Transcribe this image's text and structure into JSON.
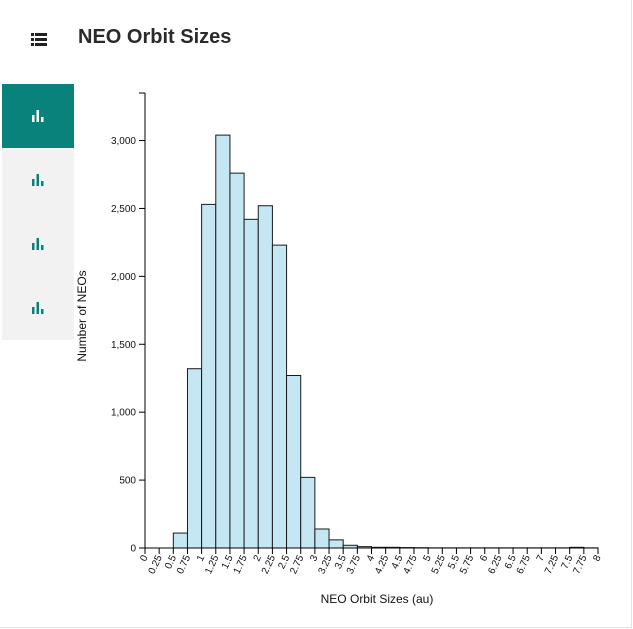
{
  "page": {
    "title": "NEO Orbit Sizes"
  },
  "icons": {
    "menu": "list-icon",
    "nav": "bar-chart-icon"
  },
  "colors": {
    "accent": "#0a827c",
    "bar_fill": "#c5e7f4",
    "sidebar_bg": "#f2f2f2"
  },
  "sidebar": {
    "items": [
      {
        "name": "chart-view-1",
        "active": true
      },
      {
        "name": "chart-view-2",
        "active": false
      },
      {
        "name": "chart-view-3",
        "active": false
      },
      {
        "name": "chart-view-4",
        "active": false
      }
    ]
  },
  "chart_data": {
    "type": "bar",
    "title": "",
    "xlabel": "NEO Orbit Sizes (au)",
    "ylabel": "Number of NEOs",
    "bin_width": 0.25,
    "xlim": [
      0,
      8
    ],
    "ylim": [
      0,
      3350
    ],
    "y_ticks": [
      0,
      500,
      1000,
      1500,
      2000,
      2500,
      3000
    ],
    "y_tick_labels": [
      "0",
      "500",
      "1,000",
      "1,500",
      "2,000",
      "2,500",
      "3,000"
    ],
    "x_tick_labels": [
      "0",
      "0.25",
      "0.5",
      "0.75",
      "1",
      "1.25",
      "1.5",
      "1.75",
      "2",
      "2.25",
      "2.5",
      "2.75",
      "3",
      "3.25",
      "3.5",
      "3.75",
      "4",
      "4.25",
      "4.5",
      "4.75",
      "5",
      "5.25",
      "5.5",
      "5.75",
      "6",
      "6.25",
      "6.5",
      "6.75",
      "7",
      "7.25",
      "7.5",
      "7.75",
      "8"
    ],
    "bins_start": [
      0,
      0.25,
      0.5,
      0.75,
      1,
      1.25,
      1.5,
      1.75,
      2,
      2.25,
      2.5,
      2.75,
      3,
      3.25,
      3.5,
      3.75,
      4,
      4.25,
      4.5,
      4.75,
      5,
      5.25,
      5.5,
      5.75,
      6,
      6.25,
      6.5,
      6.75,
      7,
      7.25,
      7.5,
      7.75
    ],
    "values": [
      0,
      0,
      110,
      1320,
      2530,
      3040,
      2760,
      2420,
      2520,
      2230,
      1270,
      520,
      140,
      60,
      20,
      10,
      5,
      5,
      3,
      2,
      1,
      1,
      1,
      1,
      1,
      1,
      1,
      1,
      1,
      1,
      5,
      1
    ]
  }
}
